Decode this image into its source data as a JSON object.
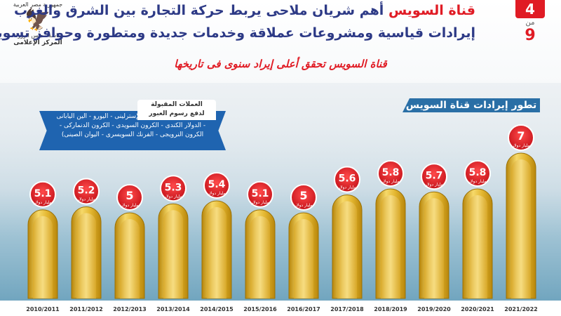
{
  "header": {
    "title_highlight": "قناة السويس",
    "title_rest": "أهم شريان ملاحى يربط حركة التجارة بين الشرق والغرب",
    "line2": "إيرادات قياسية ومشروعات عملاقة وخدمات جديدة ومتطورة وحوافز تسويقية",
    "subtitle": "قناة السويس تحقق أعلى إيراد سنوى فى تاريخها"
  },
  "logo": {
    "line1": "جمهورية مصر العربية",
    "line2": "رئاسة مجلس الوزراء",
    "line3": "المركز الإعلامى"
  },
  "pager": {
    "current": "4",
    "of": "من",
    "total": "9"
  },
  "currencies": {
    "heading_line1": "العملات المقبولة",
    "heading_line2": "لدفع رسوم العبور",
    "line1": "(الدولار الأمريكى - الجنيه الإسترلينى - اليورو - الين اليابانى",
    "line2": "- الدولار الكندى - الكرون السويدى - الكرون الدنماركى -",
    "line3": "الكرون النرويجى - الفرنك السويسرى - اليوان الصينى)"
  },
  "chart_data": {
    "type": "bar",
    "title": "تطور إيرادات قناة السويس",
    "unit_label": "مليار دولار",
    "categories": [
      "2010/2011",
      "2011/2012",
      "2012/2013",
      "2013/2014",
      "2014/2015",
      "2015/2016",
      "2016/2017",
      "2017/2018",
      "2018/2019",
      "2019/2020",
      "2020/2021",
      "2021/2022"
    ],
    "value_labels": [
      "5.1",
      "5.2",
      "5",
      "5.3",
      "5.4",
      "5.1",
      "5",
      "5.6",
      "5.8",
      "5.7",
      "5.8",
      "7"
    ],
    "values": [
      5.1,
      5.2,
      5.0,
      5.3,
      5.4,
      5.1,
      5.0,
      5.6,
      5.8,
      5.7,
      5.8,
      7.0
    ],
    "colors": {
      "bar_light": "#f6d96a",
      "bar_mid": "#e4b731",
      "bar_dark": "#b8860b",
      "badge": "#e01b24"
    }
  }
}
